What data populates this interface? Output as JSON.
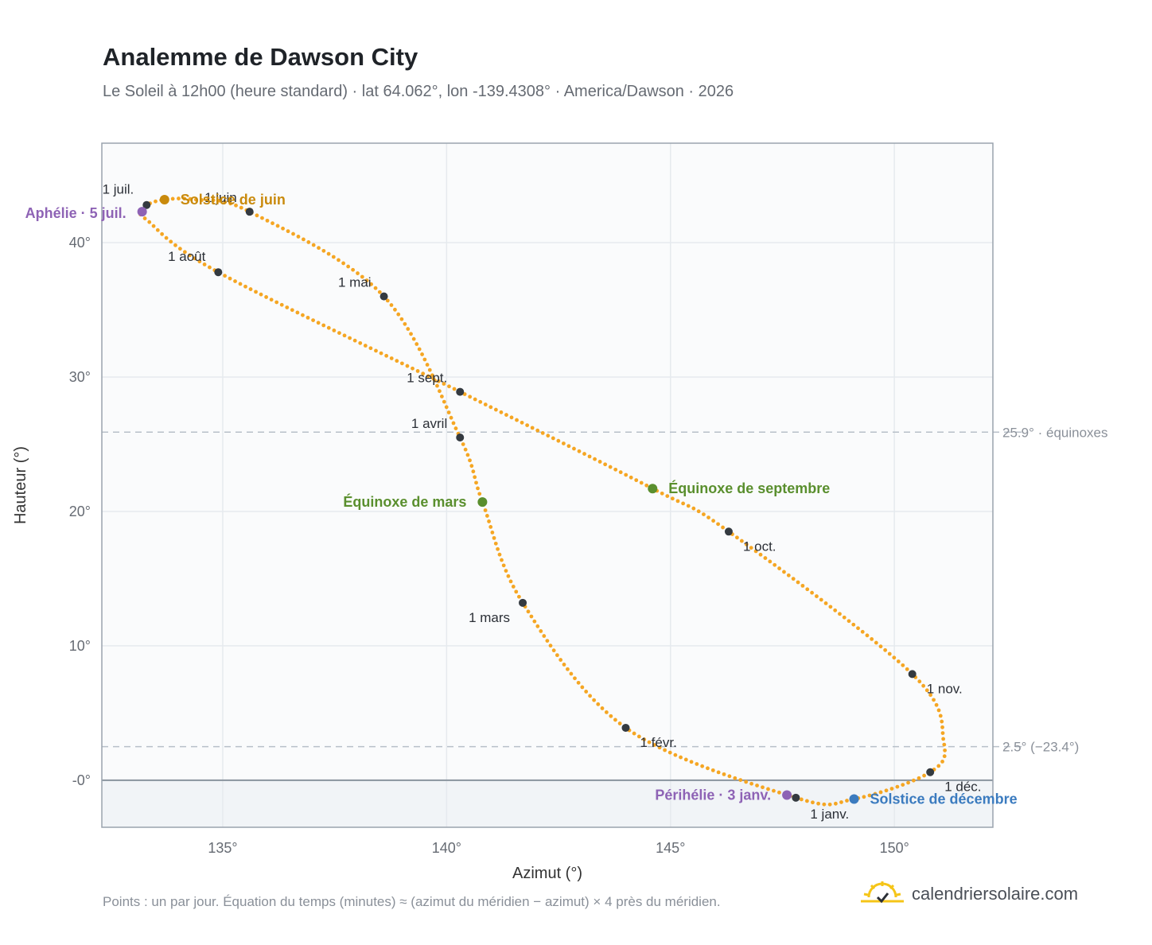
{
  "header": {
    "title": "Analemme de Dawson City",
    "subtitle": "Le Soleil à 12h00 (heure standard) · lat 64.062°, lon -139.4308° · America/Dawson · 2026"
  },
  "footer": {
    "note": "Points : un par jour. Équation du temps (minutes) ≈ (azimut du méridien − azimut) × 4 près du méridien.",
    "brand": "calendriersolaire.com"
  },
  "colors": {
    "curve": "#f5a623",
    "month_marker": "#343a40",
    "june_solstice": "#c98a0c",
    "december_solstice": "#3b7bbf",
    "equinox": "#5a8f2e",
    "apsis": "#8e63b5",
    "reference_line": "#b8c0c9",
    "below_horizon": "#f1f4f7"
  },
  "chart_data": {
    "type": "scatter",
    "xlabel": "Azimut (°)",
    "ylabel": "Hauteur (°)",
    "xlim": [
      132.3,
      152.2
    ],
    "ylim": [
      -3.5,
      47.4
    ],
    "xticks": [
      135,
      140,
      145,
      150
    ],
    "xtick_labels": [
      "135°",
      "140°",
      "145°",
      "150°"
    ],
    "yticks": [
      0,
      10,
      20,
      30,
      40
    ],
    "ytick_labels": [
      "-0°",
      "10°",
      "20°",
      "30°",
      "40°"
    ],
    "grid": true,
    "horizon_altitude": 0,
    "reference_lines": [
      {
        "y": 25.9,
        "label": "25.9° · équinoxes"
      },
      {
        "y": 2.5,
        "label": "2.5° (−23.4°)"
      }
    ],
    "series": [
      {
        "points_per_day": 1,
        "path": [
          [
            147.8,
            -1.3
          ],
          [
            144.0,
            3.9
          ],
          [
            141.7,
            13.2
          ],
          [
            140.8,
            20.7
          ],
          [
            140.3,
            25.5
          ],
          [
            138.6,
            36.0
          ],
          [
            135.6,
            42.3
          ],
          [
            134.4,
            43.2
          ],
          [
            133.7,
            43.2
          ],
          [
            133.3,
            42.8
          ],
          [
            133.2,
            42.3
          ],
          [
            133.3,
            41.7
          ],
          [
            134.9,
            37.8
          ],
          [
            140.3,
            28.9
          ],
          [
            144.6,
            21.7
          ],
          [
            146.3,
            18.5
          ],
          [
            150.4,
            7.9
          ],
          [
            151.1,
            2.9
          ],
          [
            150.8,
            0.6
          ],
          [
            149.1,
            -1.4
          ],
          [
            147.8,
            -1.3
          ]
        ]
      }
    ],
    "month_markers": [
      {
        "label": "1 janv.",
        "x": 147.8,
        "y": -1.3
      },
      {
        "label": "1 févr.",
        "x": 144.0,
        "y": 3.9
      },
      {
        "label": "1 mars",
        "x": 141.7,
        "y": 13.2
      },
      {
        "label": "1 avril",
        "x": 140.3,
        "y": 25.5
      },
      {
        "label": "1 mai",
        "x": 138.6,
        "y": 36.0
      },
      {
        "label": "1 juin",
        "x": 135.6,
        "y": 42.3
      },
      {
        "label": "1 juil.",
        "x": 133.3,
        "y": 42.8
      },
      {
        "label": "1 août",
        "x": 134.9,
        "y": 37.8
      },
      {
        "label": "1 sept.",
        "x": 140.3,
        "y": 28.9
      },
      {
        "label": "1 oct.",
        "x": 146.3,
        "y": 18.5
      },
      {
        "label": "1 nov.",
        "x": 150.4,
        "y": 7.9
      },
      {
        "label": "1 déc.",
        "x": 150.8,
        "y": 0.6
      }
    ],
    "events": [
      {
        "label": "Solstice de juin",
        "x": 133.7,
        "y": 43.2
      },
      {
        "label": "Solstice de décembre",
        "x": 149.1,
        "y": -1.4
      },
      {
        "label": "Équinoxe de mars",
        "x": 140.8,
        "y": 20.7
      },
      {
        "label": "Équinoxe de septembre",
        "x": 144.6,
        "y": 21.7
      },
      {
        "label": "Aphélie · 5 juil.",
        "x": 133.2,
        "y": 42.3
      },
      {
        "label": "Périhélie · 3 janv.",
        "x": 147.6,
        "y": -1.1
      }
    ]
  }
}
